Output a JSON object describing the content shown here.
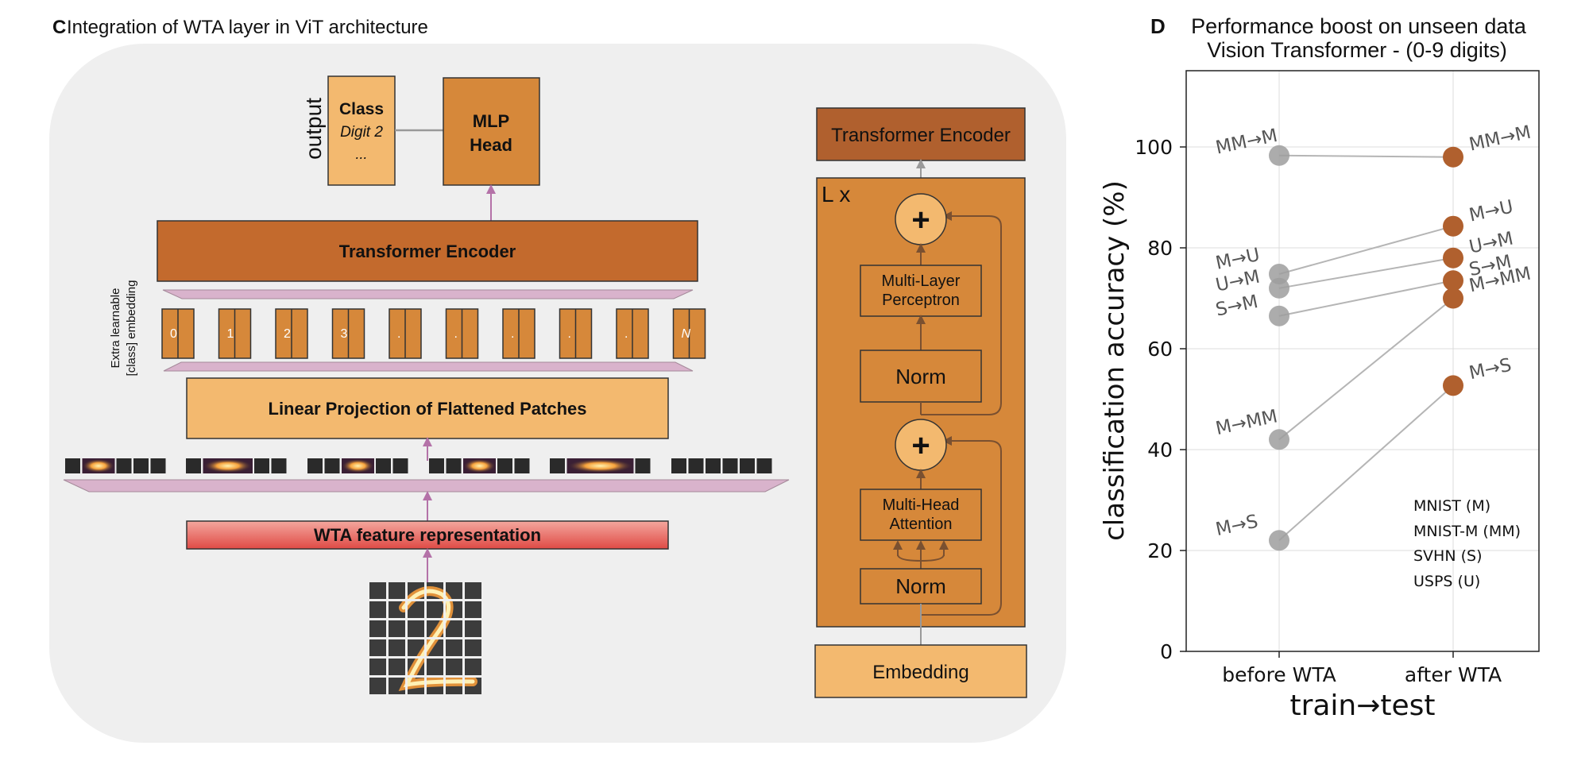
{
  "panel_c": {
    "letter": "C",
    "title": "Integration of WTA layer in ViT architecture",
    "output_label": "output",
    "class_box": {
      "title": "Class",
      "line1": "Digit 2",
      "line2": "..."
    },
    "mlp_head": {
      "line1": "MLP",
      "line2": "Head"
    },
    "encoder_label": "Transformer Encoder",
    "extra_embedding": {
      "line1": "Extra learnable",
      "line2": "[class] embedding"
    },
    "tokens": [
      "0",
      "1",
      "2",
      "3",
      ".",
      ".",
      ".",
      ".",
      ".",
      "N"
    ],
    "linear_projection": "Linear Projection of Flattened Patches",
    "wta_label": "WTA feature representation",
    "detail": {
      "title": "Transformer Encoder",
      "repeat": "L x",
      "plus": "+",
      "mlp": {
        "line1": "Multi-Layer",
        "line2": "Perceptron"
      },
      "norm": "Norm",
      "mha": {
        "line1": "Multi-Head",
        "line2": "Attention"
      },
      "embedding": "Embedding"
    },
    "colors": {
      "background_panel": "#efefef",
      "encoder": "#c36a2d",
      "mlp_head": "#d6883a",
      "light_orange": "#f3b96f",
      "wta_top": "#f2a09a",
      "wta_bottom": "#e0504a",
      "pink_band": "#d9b3cc",
      "arrow_pink": "#b472a8"
    }
  },
  "panel_d": {
    "letter": "D",
    "title_line1": "Performance boost on unseen data",
    "title_line2": "Vision Transformer - (0-9 digits)",
    "legend": [
      "MNIST (M)",
      "MNIST-M (MM)",
      "SVHN (S)",
      "USPS (U)"
    ]
  },
  "chart_data": {
    "type": "scatter",
    "categories": [
      "before WTA",
      "after WTA"
    ],
    "xlabel": "train→test",
    "ylabel": "classification accuracy (%)",
    "ylim": [
      0,
      115
    ],
    "yticks": [
      0,
      20,
      40,
      60,
      80,
      100
    ],
    "grid": true,
    "legend_placement": "bottom-right",
    "series": [
      {
        "name": "MM→M",
        "values": [
          98.3,
          98.0
        ]
      },
      {
        "name": "M→U",
        "values": [
          74.8,
          84.3
        ]
      },
      {
        "name": "U→M",
        "values": [
          72.0,
          78.0
        ]
      },
      {
        "name": "S→M",
        "values": [
          66.5,
          73.5
        ]
      },
      {
        "name": "M→MM",
        "values": [
          42.0,
          70.0
        ]
      },
      {
        "name": "M→S",
        "values": [
          22.0,
          52.7
        ]
      }
    ],
    "colors": {
      "before": "#9e9e9e",
      "after": "#b0602e",
      "line": "#b5b5b5"
    }
  }
}
